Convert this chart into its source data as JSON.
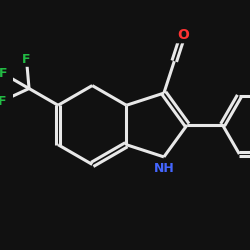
{
  "background_color": "#111111",
  "bond_color": "#e8e8e8",
  "atom_colors": {
    "N": "#4466ff",
    "O": "#ff3333",
    "F": "#22bb44",
    "C": "#e8e8e8"
  },
  "figsize": [
    2.5,
    2.5
  ],
  "dpi": 100
}
